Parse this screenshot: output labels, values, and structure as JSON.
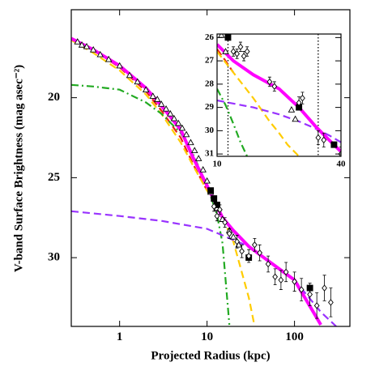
{
  "chart_data": [
    {
      "type": "line",
      "xlabel": "Projected Radius (kpc)",
      "ylabel": "V-band Surface Brightness (mag asec⁻²)",
      "xscale": "log",
      "yinverted": true,
      "xlim": [
        0.28,
        430
      ],
      "ylim": [
        14.5,
        34.3
      ],
      "xticks": [
        1,
        10,
        100
      ],
      "yticks": [
        20,
        25,
        30
      ],
      "series": [
        {
          "color": "#e8201a",
          "linestyle": "dashed",
          "x": [
            0.28,
            0.5,
            1,
            2,
            3,
            5,
            7,
            10
          ],
          "values": [
            16.3,
            17.0,
            18.1,
            19.6,
            20.8,
            22.5,
            24.2,
            25.8
          ]
        },
        {
          "color": "#ffcc00",
          "linestyle": "dashed",
          "x": [
            0.28,
            0.5,
            1,
            2,
            3,
            5,
            7,
            10,
            15,
            20,
            30,
            35
          ],
          "values": [
            16.4,
            17.2,
            18.3,
            19.8,
            21.0,
            22.8,
            24.3,
            25.8,
            27.5,
            29.0,
            32.5,
            34.3
          ]
        },
        {
          "color": "#22aa22",
          "linestyle": "dashdot",
          "x": [
            0.28,
            0.5,
            1,
            2,
            3,
            5,
            7,
            10,
            13,
            15,
            18
          ],
          "values": [
            19.2,
            19.3,
            19.5,
            20.3,
            21.0,
            22.2,
            23.6,
            25.5,
            27.3,
            29.1,
            34.2
          ]
        },
        {
          "color": "#9933ff",
          "linestyle": "dashed",
          "x": [
            0.28,
            1,
            3,
            10,
            30,
            100,
            200,
            300
          ],
          "values": [
            27.1,
            27.4,
            27.7,
            28.2,
            29.3,
            31.4,
            33.4,
            34.3
          ]
        },
        {
          "color": "#ff00ff",
          "linestyle": "solid",
          "x": [
            0.28,
            0.5,
            1,
            2,
            3,
            5,
            7,
            10,
            15,
            20,
            30,
            50,
            100,
            200
          ],
          "values": [
            16.3,
            17.0,
            18.0,
            19.4,
            20.5,
            22.0,
            23.8,
            25.5,
            27.5,
            28.3,
            29.3,
            30.2,
            31.4,
            34.2
          ]
        },
        {
          "color": "#000000",
          "marker": "triangle",
          "x": [
            0.33,
            0.37,
            0.42,
            0.5,
            0.6,
            0.75,
            1.0,
            1.3,
            1.6,
            2.0,
            2.4,
            2.7,
            3.0,
            3.4,
            3.8,
            4.2,
            4.7,
            5.2,
            5.8,
            6.5,
            7.2,
            8,
            9,
            10,
            11,
            13,
            15,
            18,
            20,
            23
          ],
          "values": [
            16.5,
            16.7,
            16.8,
            17.0,
            17.3,
            17.6,
            18.0,
            18.6,
            19.0,
            19.5,
            19.9,
            20.1,
            20.4,
            20.7,
            21.0,
            21.3,
            21.6,
            21.9,
            22.3,
            22.8,
            23.3,
            23.8,
            24.5,
            25.2,
            25.9,
            26.9,
            27.6,
            28.3,
            28.7,
            29.2
          ]
        },
        {
          "color": "#000000",
          "marker": "square",
          "x": [
            11,
            12,
            13,
            30,
            150
          ],
          "values": [
            25.8,
            26.3,
            26.7,
            30.0,
            31.9
          ]
        },
        {
          "color": "#000000",
          "marker": "diamond",
          "x": [
            12,
            13,
            14,
            16,
            18,
            22,
            25,
            30,
            35,
            40,
            50,
            60,
            70,
            80,
            100,
            120,
            150,
            180,
            220,
            260
          ],
          "values": [
            26.8,
            27.4,
            27.0,
            27.8,
            28.5,
            29.0,
            29.6,
            29.9,
            29.2,
            29.7,
            30.4,
            31.2,
            31.4,
            30.9,
            31.5,
            32.0,
            32.3,
            33.0,
            31.9,
            32.8
          ],
          "errors": [
            0.3,
            0.3,
            0.3,
            0.3,
            0.3,
            0.4,
            0.4,
            0.4,
            0.4,
            0.5,
            0.5,
            0.5,
            0.6,
            0.6,
            0.6,
            0.7,
            0.7,
            0.8,
            0.8,
            0.9
          ]
        }
      ]
    },
    {
      "type": "line",
      "xscale": "log",
      "yinverted": true,
      "xlim": [
        10,
        40
      ],
      "ylim": [
        25.85,
        31.1
      ],
      "xticks": [
        10,
        40
      ],
      "yticks": [
        26,
        27,
        28,
        29,
        30,
        31
      ],
      "vlines": [
        11.3,
        31
      ],
      "series": [
        {
          "color": "#e8201a",
          "linestyle": "dashed",
          "x": [
            10,
            11,
            12
          ],
          "values": [
            26.5,
            27.0,
            27.5
          ]
        },
        {
          "color": "#ffcc00",
          "linestyle": "dashed",
          "x": [
            10,
            12,
            15,
            18,
            20,
            22,
            25
          ],
          "values": [
            26.6,
            27.5,
            28.6,
            29.6,
            30.1,
            30.6,
            31.1
          ]
        },
        {
          "color": "#22aa22",
          "linestyle": "dashdot",
          "x": [
            10,
            11,
            12,
            13,
            14
          ],
          "values": [
            28.2,
            28.9,
            29.7,
            30.5,
            31.1
          ]
        },
        {
          "color": "#9933ff",
          "linestyle": "dashed",
          "x": [
            10,
            15,
            20,
            25,
            30,
            35,
            40
          ],
          "values": [
            28.7,
            29.0,
            29.3,
            29.6,
            29.9,
            30.2,
            30.5
          ]
        },
        {
          "color": "#ff00ff",
          "linestyle": "solid",
          "x": [
            10,
            12,
            15,
            20,
            25,
            30,
            35,
            40
          ],
          "values": [
            26.3,
            27.0,
            27.6,
            28.2,
            29.0,
            29.8,
            30.4,
            30.9
          ]
        },
        {
          "color": "#000000",
          "marker": "triangle",
          "x": [
            10.5,
            11,
            23,
            24
          ],
          "values": [
            25.9,
            26.6,
            29.1,
            29.5
          ]
        },
        {
          "color": "#000000",
          "marker": "square",
          "x": [
            11.3,
            25,
            37
          ],
          "values": [
            26.0,
            29.0,
            30.6
          ]
        },
        {
          "color": "#000000",
          "marker": "diamond",
          "x": [
            12,
            12.5,
            13,
            13.5,
            14,
            18,
            19,
            25,
            26,
            31,
            33,
            40
          ],
          "values": [
            26.6,
            26.7,
            26.4,
            26.8,
            26.6,
            27.9,
            28.1,
            28.8,
            28.6,
            30.3,
            30.4,
            31.0
          ],
          "errors": [
            0.2,
            0.2,
            0.2,
            0.2,
            0.2,
            0.2,
            0.2,
            0.25,
            0.25,
            0.3,
            0.3,
            0.3
          ]
        }
      ]
    }
  ]
}
